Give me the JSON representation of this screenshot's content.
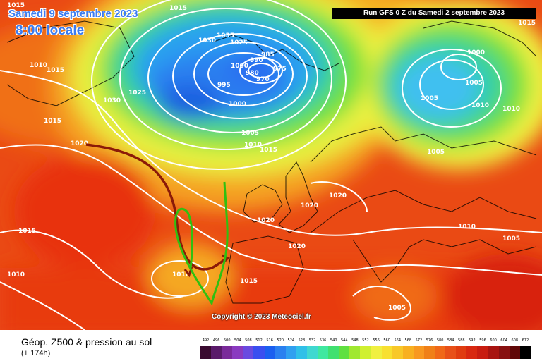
{
  "header": {
    "date_label": "Samedi 9 septembre 2023",
    "time_label": "8:00 locale",
    "run_info": "Run GFS 0 Z du Samedi 2 septembre 2023"
  },
  "map": {
    "copyright": "Copyright © 2023 Meteociel.fr",
    "isobar_labels": [
      "1015",
      "1010",
      "1015",
      "1025",
      "1030",
      "1015",
      "1020",
      "1035",
      "1030",
      "1025",
      "1000",
      "995",
      "1000",
      "985",
      "990",
      "975",
      "980",
      "970",
      "1005",
      "1010",
      "1015",
      "1000",
      "1005",
      "1005",
      "1010",
      "1010",
      "1020",
      "1020",
      "1020",
      "1020",
      "1015",
      "1010",
      "1015",
      "1005",
      "1005",
      "1015",
      "1015",
      "1010",
      "1010",
      "1005"
    ],
    "colors": {
      "very_low": "#1a5fe0",
      "low": "#2aa0f0",
      "mid": "#30d070",
      "transition": "#e8f040",
      "high": "#f5b020",
      "very_high": "#e83010",
      "isobar": "#ffffff",
      "coast": "#000000",
      "track_dark": "#8b1a08",
      "track_green": "#30c010"
    }
  },
  "legend": {
    "title": "Géop. Z500 & pression au sol",
    "subtitle": "(+ 174h)",
    "scale_values": [
      "492",
      "496",
      "500",
      "504",
      "508",
      "512",
      "516",
      "520",
      "524",
      "528",
      "532",
      "536",
      "540",
      "544",
      "548",
      "552",
      "556",
      "560",
      "564",
      "568",
      "572",
      "576",
      "580",
      "584",
      "588",
      "592",
      "596",
      "600",
      "604",
      "608",
      "612"
    ],
    "scale_colors": [
      "#3a0a30",
      "#5a1a6a",
      "#7a2a9a",
      "#8a3ac0",
      "#6a4ae0",
      "#3a4ef0",
      "#1a5ff0",
      "#2a80f0",
      "#30a0f0",
      "#30c0e8",
      "#40d8d0",
      "#40e8a0",
      "#40e070",
      "#60e040",
      "#a0e830",
      "#d0f030",
      "#f0f040",
      "#f8e030",
      "#f8c828",
      "#f8b020",
      "#f89820",
      "#f08018",
      "#f06818",
      "#e85018",
      "#e03c10",
      "#d82810",
      "#c81c10",
      "#a81410",
      "#881010",
      "#600808",
      "#000000"
    ]
  }
}
